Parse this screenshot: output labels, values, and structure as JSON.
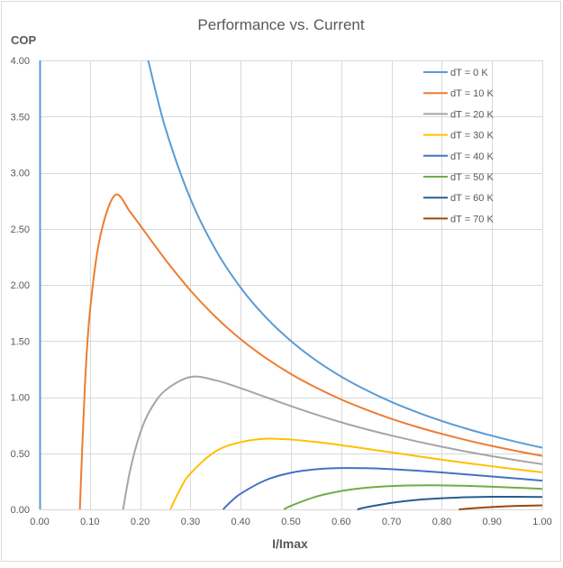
{
  "chart_data": {
    "type": "line",
    "title": "Performance vs. Current",
    "xlabel": "I/Imax",
    "ylabel": "COP",
    "xlim": [
      0,
      1
    ],
    "ylim": [
      0,
      4
    ],
    "x_ticks": [
      "0.00",
      "0.10",
      "0.20",
      "0.30",
      "0.40",
      "0.50",
      "0.60",
      "0.70",
      "0.80",
      "0.90",
      "1.00"
    ],
    "y_ticks": [
      "0.00",
      "0.50",
      "1.00",
      "1.50",
      "2.00",
      "2.50",
      "3.00",
      "3.50",
      "4.00"
    ],
    "grid": true,
    "legend_position": "top-right",
    "series": [
      {
        "name": "dT = 0 K",
        "color": "#5b9bd5",
        "points": [
          [
            0.216,
            4.0
          ],
          [
            0.25,
            3.4
          ],
          [
            0.3,
            2.767
          ],
          [
            0.35,
            2.314
          ],
          [
            0.4,
            1.975
          ],
          [
            0.45,
            1.711
          ],
          [
            0.5,
            1.5
          ],
          [
            0.55,
            1.327
          ],
          [
            0.6,
            1.183
          ],
          [
            0.65,
            1.062
          ],
          [
            0.7,
            0.957
          ],
          [
            0.75,
            0.867
          ],
          [
            0.8,
            0.788
          ],
          [
            0.85,
            0.718
          ],
          [
            0.9,
            0.656
          ],
          [
            0.95,
            0.6
          ],
          [
            1.0,
            0.55
          ]
        ]
      },
      {
        "name": "dT = 10 K",
        "color": "#ed7d31",
        "points": [
          [
            0.08,
            0
          ],
          [
            0.09,
            1.094
          ],
          [
            0.1,
            1.76
          ],
          [
            0.12,
            2.42
          ],
          [
            0.15,
            2.8
          ],
          [
            0.18,
            2.65
          ],
          [
            0.2,
            2.53
          ],
          [
            0.25,
            2.226
          ],
          [
            0.3,
            1.951
          ],
          [
            0.35,
            1.715
          ],
          [
            0.4,
            1.516
          ],
          [
            0.45,
            1.349
          ],
          [
            0.5,
            1.206
          ],
          [
            0.55,
            1.085
          ],
          [
            0.6,
            0.979
          ],
          [
            0.65,
            0.888
          ],
          [
            0.7,
            0.807
          ],
          [
            0.75,
            0.736
          ],
          [
            0.8,
            0.673
          ],
          [
            0.85,
            0.616
          ],
          [
            0.9,
            0.565
          ],
          [
            0.95,
            0.519
          ],
          [
            1.0,
            0.477
          ]
        ]
      },
      {
        "name": "dT = 20 K",
        "color": "#a5a5a5",
        "points": [
          [
            0.166,
            0
          ],
          [
            0.18,
            0.347
          ],
          [
            0.2,
            0.68
          ],
          [
            0.22,
            0.885
          ],
          [
            0.25,
            1.06
          ],
          [
            0.3,
            1.18
          ],
          [
            0.35,
            1.15
          ],
          [
            0.4,
            1.08
          ],
          [
            0.45,
            1.0
          ],
          [
            0.5,
            0.92
          ],
          [
            0.55,
            0.845
          ],
          [
            0.6,
            0.776
          ],
          [
            0.65,
            0.714
          ],
          [
            0.7,
            0.658
          ],
          [
            0.75,
            0.606
          ],
          [
            0.8,
            0.558
          ],
          [
            0.85,
            0.514
          ],
          [
            0.9,
            0.474
          ],
          [
            0.95,
            0.437
          ],
          [
            1.0,
            0.403
          ]
        ]
      },
      {
        "name": "dT = 30 K",
        "color": "#ffc000",
        "points": [
          [
            0.26,
            0
          ],
          [
            0.28,
            0.184
          ],
          [
            0.3,
            0.32
          ],
          [
            0.35,
            0.517
          ],
          [
            0.4,
            0.599
          ],
          [
            0.45,
            0.63
          ],
          [
            0.5,
            0.622
          ],
          [
            0.55,
            0.6
          ],
          [
            0.6,
            0.572
          ],
          [
            0.65,
            0.54
          ],
          [
            0.7,
            0.508
          ],
          [
            0.75,
            0.475
          ],
          [
            0.8,
            0.443
          ],
          [
            0.85,
            0.413
          ],
          [
            0.9,
            0.384
          ],
          [
            0.95,
            0.356
          ],
          [
            1.0,
            0.33
          ]
        ]
      },
      {
        "name": "dT = 40 K",
        "color": "#4472c4",
        "points": [
          [
            0.365,
            0
          ],
          [
            0.38,
            0.067
          ],
          [
            0.4,
            0.14
          ],
          [
            0.45,
            0.261
          ],
          [
            0.5,
            0.326
          ],
          [
            0.55,
            0.357
          ],
          [
            0.6,
            0.368
          ],
          [
            0.65,
            0.367
          ],
          [
            0.7,
            0.358
          ],
          [
            0.75,
            0.345
          ],
          [
            0.8,
            0.329
          ],
          [
            0.85,
            0.311
          ],
          [
            0.9,
            0.293
          ],
          [
            0.95,
            0.275
          ],
          [
            1.0,
            0.256
          ]
        ]
      },
      {
        "name": "dT = 50 K",
        "color": "#70ad47",
        "points": [
          [
            0.486,
            0
          ],
          [
            0.5,
            0.032
          ],
          [
            0.55,
            0.114
          ],
          [
            0.6,
            0.164
          ],
          [
            0.65,
            0.193
          ],
          [
            0.7,
            0.208
          ],
          [
            0.75,
            0.214
          ],
          [
            0.8,
            0.214
          ],
          [
            0.85,
            0.21
          ],
          [
            0.9,
            0.202
          ],
          [
            0.95,
            0.193
          ],
          [
            1.0,
            0.183
          ]
        ]
      },
      {
        "name": "dT = 60 K",
        "color": "#255e91",
        "points": [
          [
            0.632,
            0
          ],
          [
            0.65,
            0.019
          ],
          [
            0.7,
            0.058
          ],
          [
            0.75,
            0.084
          ],
          [
            0.8,
            0.099
          ],
          [
            0.85,
            0.108
          ],
          [
            0.9,
            0.112
          ],
          [
            0.95,
            0.112
          ],
          [
            1.0,
            0.11
          ]
        ]
      },
      {
        "name": "dT = 70 K",
        "color": "#9e480e",
        "points": [
          [
            0.834,
            0
          ],
          [
            0.85,
            0.0065
          ],
          [
            0.9,
            0.021
          ],
          [
            0.95,
            0.031
          ],
          [
            1.0,
            0.036
          ]
        ]
      }
    ]
  }
}
